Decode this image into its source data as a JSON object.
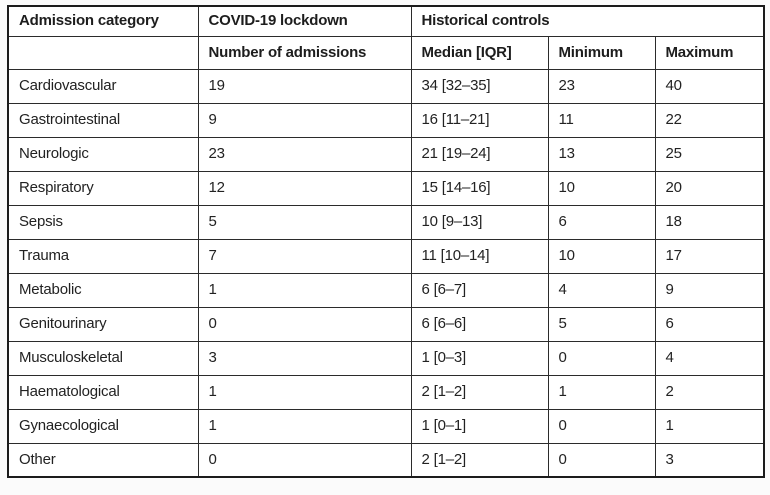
{
  "table": {
    "header_row1": {
      "admission_category": "Admission category",
      "covid_lockdown": "COVID-19 lockdown",
      "historical_controls": "Historical controls"
    },
    "header_row2": {
      "number_of_admissions": "Number of admissions",
      "median_iqr": "Median [IQR]",
      "minimum": "Minimum",
      "maximum": "Maximum"
    },
    "rows": [
      {
        "category": "Cardiovascular",
        "admissions": "19",
        "median_iqr": "34 [32–35]",
        "min": "23",
        "max": "40"
      },
      {
        "category": "Gastrointestinal",
        "admissions": "9",
        "median_iqr": "16 [11–21]",
        "min": "11",
        "max": "22"
      },
      {
        "category": "Neurologic",
        "admissions": "23",
        "median_iqr": "21 [19–24]",
        "min": "13",
        "max": "25"
      },
      {
        "category": "Respiratory",
        "admissions": "12",
        "median_iqr": "15 [14–16]",
        "min": "10",
        "max": "20"
      },
      {
        "category": "Sepsis",
        "admissions": "5",
        "median_iqr": "10 [9–13]",
        "min": "6",
        "max": "18"
      },
      {
        "category": "Trauma",
        "admissions": "7",
        "median_iqr": "11 [10–14]",
        "min": "10",
        "max": "17"
      },
      {
        "category": "Metabolic",
        "admissions": "1",
        "median_iqr": "6 [6–7]",
        "min": "4",
        "max": "9"
      },
      {
        "category": "Genitourinary",
        "admissions": "0",
        "median_iqr": "6 [6–6]",
        "min": "5",
        "max": "6"
      },
      {
        "category": "Musculoskeletal",
        "admissions": "3",
        "median_iqr": "1 [0–3]",
        "min": "0",
        "max": "4"
      },
      {
        "category": "Haematological",
        "admissions": "1",
        "median_iqr": "2 [1–2]",
        "min": "1",
        "max": "2"
      },
      {
        "category": "Gynaecological",
        "admissions": "1",
        "median_iqr": "1 [0–1]",
        "min": "0",
        "max": "1"
      },
      {
        "category": "Other",
        "admissions": "0",
        "median_iqr": "2 [1–2]",
        "min": "0",
        "max": "3"
      }
    ],
    "colors": {
      "border_outer": "#1c1c1c",
      "border_inner": "#2b2b2b",
      "text": "#1d1d1d",
      "background": "#ffffff"
    }
  }
}
